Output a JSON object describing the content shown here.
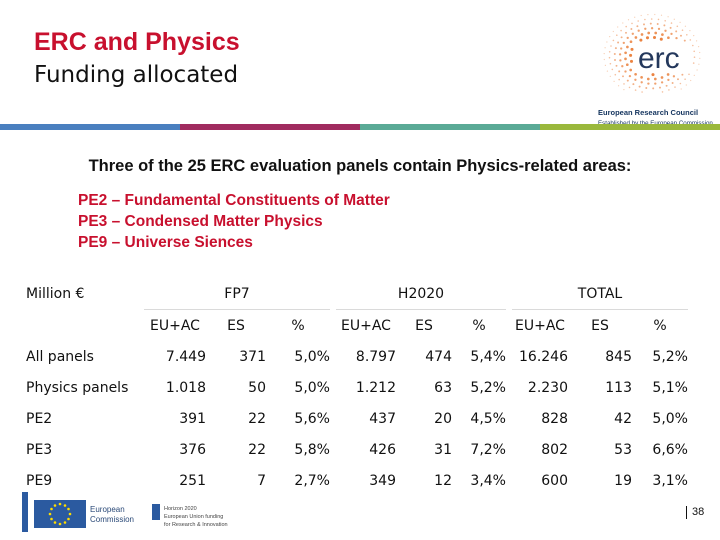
{
  "header": {
    "title": "ERC and Physics",
    "subtitle": "Funding allocated"
  },
  "logo": {
    "wordmark": "erc",
    "org": "European Research Council",
    "tagline": "Established by the European Commission"
  },
  "stripe_colors": [
    "#4a7fbf",
    "#a02b5f",
    "#5aaa96",
    "#9ab83c"
  ],
  "intro": "Three of the 25 ERC evaluation panels contain Physics-related areas:",
  "panels": [
    "PE2 – Fundamental Constituents of Matter",
    "PE3 – Condensed Matter Physics",
    "PE9 – Universe Siences"
  ],
  "table": {
    "corner": "Million €",
    "groups": [
      "FP7",
      "H2020",
      "TOTAL"
    ],
    "subheaders": [
      "EU+AC",
      "ES",
      "%",
      "EU+AC",
      "ES",
      "%",
      "EU+AC",
      "ES",
      "%"
    ],
    "rows": [
      {
        "label": "All panels",
        "cells": [
          "7.449",
          "371",
          "5,0%",
          "8.797",
          "474",
          "5,4%",
          "16.246",
          "845",
          "5,2%"
        ]
      },
      {
        "label": "Physics panels",
        "cells": [
          "1.018",
          "50",
          "5,0%",
          "1.212",
          "63",
          "5,2%",
          "2.230",
          "113",
          "5,1%"
        ]
      },
      {
        "label": "PE2",
        "cells": [
          "391",
          "22",
          "5,6%",
          "437",
          "20",
          "4,5%",
          "828",
          "42",
          "5,0%"
        ]
      },
      {
        "label": "PE3",
        "cells": [
          "376",
          "22",
          "5,8%",
          "426",
          "31",
          "7,2%",
          "802",
          "53",
          "6,6%"
        ]
      },
      {
        "label": "PE9",
        "cells": [
          "251",
          "7",
          "2,7%",
          "349",
          "12",
          "3,4%",
          "600",
          "19",
          "3,1%"
        ]
      }
    ]
  },
  "footer": {
    "ec_line1": "European",
    "ec_line2": "Commission",
    "h2020_line1": "Horizon 2020",
    "h2020_line2": "European Union funding",
    "h2020_line3": "for Research & Innovation",
    "page_number": "38"
  }
}
